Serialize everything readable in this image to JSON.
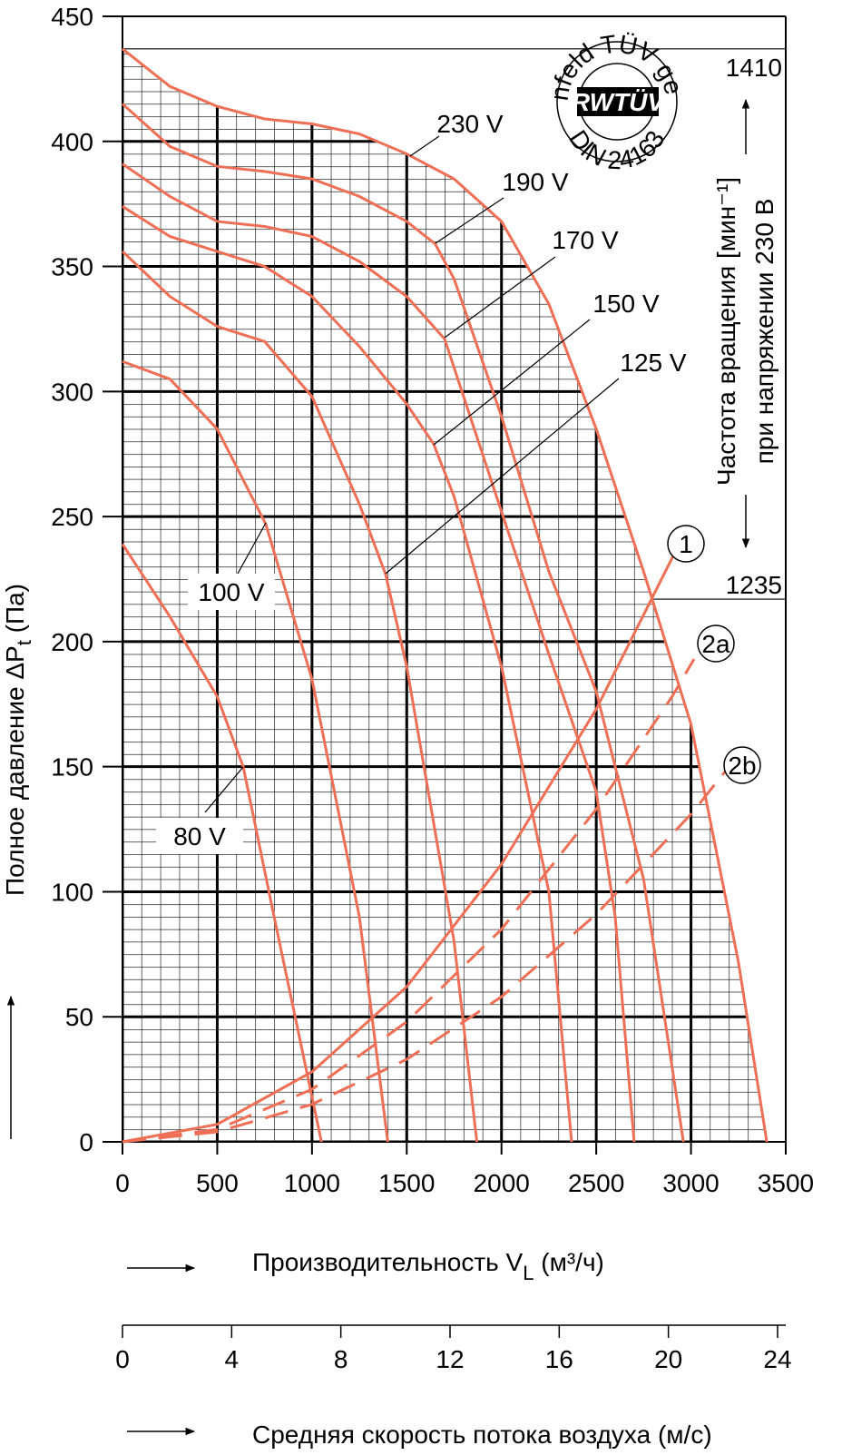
{
  "chart_data": {
    "type": "line",
    "ylabel": {
      "text": "Полное давление ΔP",
      "sub": "t",
      "after": " (Па)"
    },
    "xlabel": {
      "text": "Производительность V",
      "sub": "L",
      "after": " (м³/ч)"
    },
    "x2label": "Средняя скорость потока воздуха (м/с)",
    "right_label": [
      "Частота вращения [мин⁻¹]",
      "при напряжении 230 В"
    ],
    "badge": {
      "top": "Kennfeld TÜV geprüft",
      "brand": "RWTÜV",
      "bottom": "DIN 24163"
    },
    "xlim": [
      0,
      3500
    ],
    "ylim": [
      0,
      450
    ],
    "xticks": [
      0,
      500,
      1000,
      1500,
      2000,
      2500,
      3000,
      3500
    ],
    "yticks": [
      0,
      50,
      100,
      150,
      200,
      250,
      300,
      350,
      400,
      450
    ],
    "x2lim": [
      0,
      24.3
    ],
    "x2ticks": [
      0,
      4,
      8,
      12,
      16,
      20,
      24
    ],
    "grid": true,
    "speed_marks": [
      {
        "label": "1410",
        "y": 437
      },
      {
        "label": "1235",
        "y": 217
      }
    ],
    "series": [
      {
        "name": "230 V",
        "color": "#ee6f55",
        "style": "solid",
        "x": [
          0,
          250,
          500,
          750,
          1000,
          1250,
          1500,
          1750,
          2000,
          2250,
          2500,
          2750,
          3000,
          3250,
          3400
        ],
        "values": [
          437,
          422,
          414,
          409,
          407,
          403,
          395,
          385,
          368,
          335,
          285,
          228,
          167,
          72,
          0
        ]
      },
      {
        "name": "190 V",
        "color": "#ee6f55",
        "style": "solid",
        "x": [
          0,
          250,
          500,
          750,
          1000,
          1250,
          1500,
          1650,
          1750,
          2000,
          2250,
          2500,
          2750,
          2960
        ],
        "values": [
          415,
          398,
          390,
          388,
          385,
          378,
          368,
          359,
          345,
          290,
          228,
          180,
          105,
          0
        ]
      },
      {
        "name": "170 V",
        "color": "#ee6f55",
        "style": "solid",
        "x": [
          0,
          250,
          500,
          750,
          1000,
          1250,
          1500,
          1700,
          2000,
          2250,
          2500,
          2600,
          2700
        ],
        "values": [
          391,
          378,
          368,
          366,
          362,
          352,
          338,
          321,
          252,
          195,
          140,
          90,
          0
        ]
      },
      {
        "name": "150 V",
        "color": "#ee6f55",
        "style": "solid",
        "x": [
          0,
          250,
          500,
          750,
          1000,
          1250,
          1500,
          1642,
          1750,
          2000,
          2250,
          2370
        ],
        "values": [
          374,
          362,
          356,
          350,
          338,
          318,
          295,
          279,
          258,
          190,
          100,
          0
        ]
      },
      {
        "name": "125 V",
        "color": "#ee6f55",
        "style": "solid",
        "x": [
          0,
          250,
          500,
          750,
          1000,
          1250,
          1388,
          1500,
          1750,
          1870
        ],
        "values": [
          356,
          338,
          326,
          320,
          298,
          255,
          227,
          190,
          80,
          0
        ]
      },
      {
        "name": "100 V",
        "color": "#ee6f55",
        "style": "solid",
        "x": [
          0,
          250,
          500,
          756,
          1000,
          1250,
          1400
        ],
        "values": [
          312,
          305,
          285,
          247,
          185,
          90,
          0
        ]
      },
      {
        "name": "80 V",
        "color": "#ee6f55",
        "style": "solid",
        "x": [
          0,
          250,
          500,
          637,
          800,
          1050
        ],
        "values": [
          239,
          210,
          178,
          150,
          90,
          0
        ]
      },
      {
        "name": "1",
        "color": "#ee6f55",
        "style": "solid",
        "x": [
          0,
          500,
          1000,
          1500,
          2000,
          2500,
          2944
        ],
        "values": [
          0,
          7,
          28,
          62,
          111,
          173,
          240
        ]
      },
      {
        "name": "2a",
        "color": "#ee6f55",
        "style": "dashed",
        "x": [
          0,
          500,
          1000,
          1500,
          2000,
          2500,
          2900,
          3016
        ],
        "values": [
          0,
          5,
          21,
          48,
          85,
          133,
          178,
          193
        ]
      },
      {
        "name": "2b",
        "color": "#ee6f55",
        "style": "dashed",
        "x": [
          0,
          500,
          1000,
          1500,
          2000,
          2500,
          3000,
          3222
        ],
        "values": [
          0,
          4,
          15,
          33,
          58,
          91,
          131,
          152
        ]
      }
    ]
  }
}
